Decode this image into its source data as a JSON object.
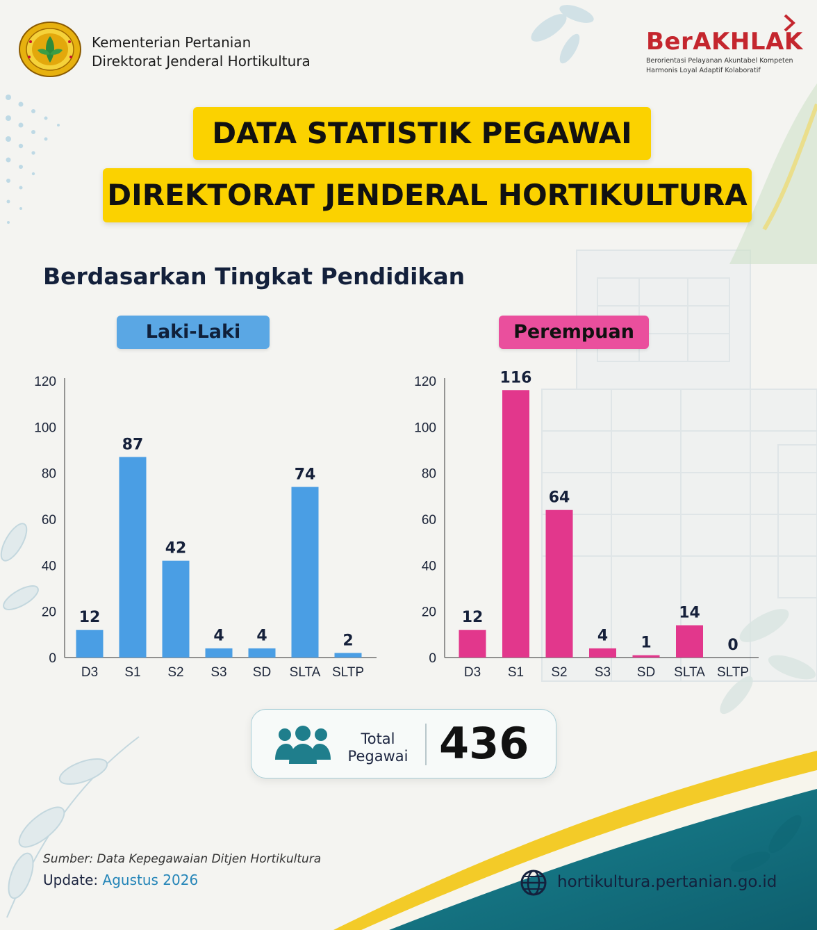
{
  "header": {
    "org_line1": "Kementerian Pertanian",
    "org_line2": "Direktorat Jenderal Hortikultura",
    "brand_name": "BerAKHLAK",
    "brand_tag_line1": "Berorientasi Pelayanan Akuntabel Kompeten",
    "brand_tag_line2": "Harmonis Loyal Adaptif Kolaboratif",
    "logo_icon": "kementan-seal-icon"
  },
  "title": {
    "line1": "DATA STATISTIK PEGAWAI",
    "line2": "DIREKTORAT JENDERAL HORTIKULTURA"
  },
  "subtitle": "Berdasarkan Tingkat Pendidikan",
  "chart_data": [
    {
      "type": "bar",
      "title": "Laki-Laki",
      "color": "#4a9ee4",
      "categories": [
        "D3",
        "S1",
        "S2",
        "S3",
        "SD",
        "SLTA",
        "SLTP"
      ],
      "values": [
        12,
        87,
        42,
        4,
        4,
        74,
        2
      ],
      "ylim": [
        0,
        120
      ],
      "yticks": [
        0,
        20,
        40,
        60,
        80,
        100,
        120
      ],
      "xlabel": "",
      "ylabel": "",
      "grid": false
    },
    {
      "type": "bar",
      "title": "Perempuan",
      "color": "#e2378c",
      "categories": [
        "D3",
        "S1",
        "S2",
        "S3",
        "SD",
        "SLTA",
        "SLTP"
      ],
      "values": [
        12,
        116,
        64,
        4,
        1,
        14,
        0
      ],
      "ylim": [
        0,
        120
      ],
      "yticks": [
        0,
        20,
        40,
        60,
        80,
        100,
        120
      ],
      "xlabel": "",
      "ylabel": "",
      "grid": false
    }
  ],
  "total": {
    "label_line1": "Total",
    "label_line2": "Pegawai",
    "value": "436",
    "icon": "people-group-icon",
    "icon_color": "#1f7e8c"
  },
  "footer": {
    "source": "Sumber: Data Kepegawaian Ditjen Hortikultura",
    "update_label": "Update:",
    "update_value": "Agustus 2026",
    "website": "hortikultura.pertanian.go.id",
    "website_icon": "globe-icon"
  },
  "colors": {
    "title_bg": "#fbd200",
    "male_pill": "#5aa7e4",
    "female_pill": "#ea4f9d",
    "teal": "#137281",
    "accent_yellow": "#f3cb28"
  }
}
